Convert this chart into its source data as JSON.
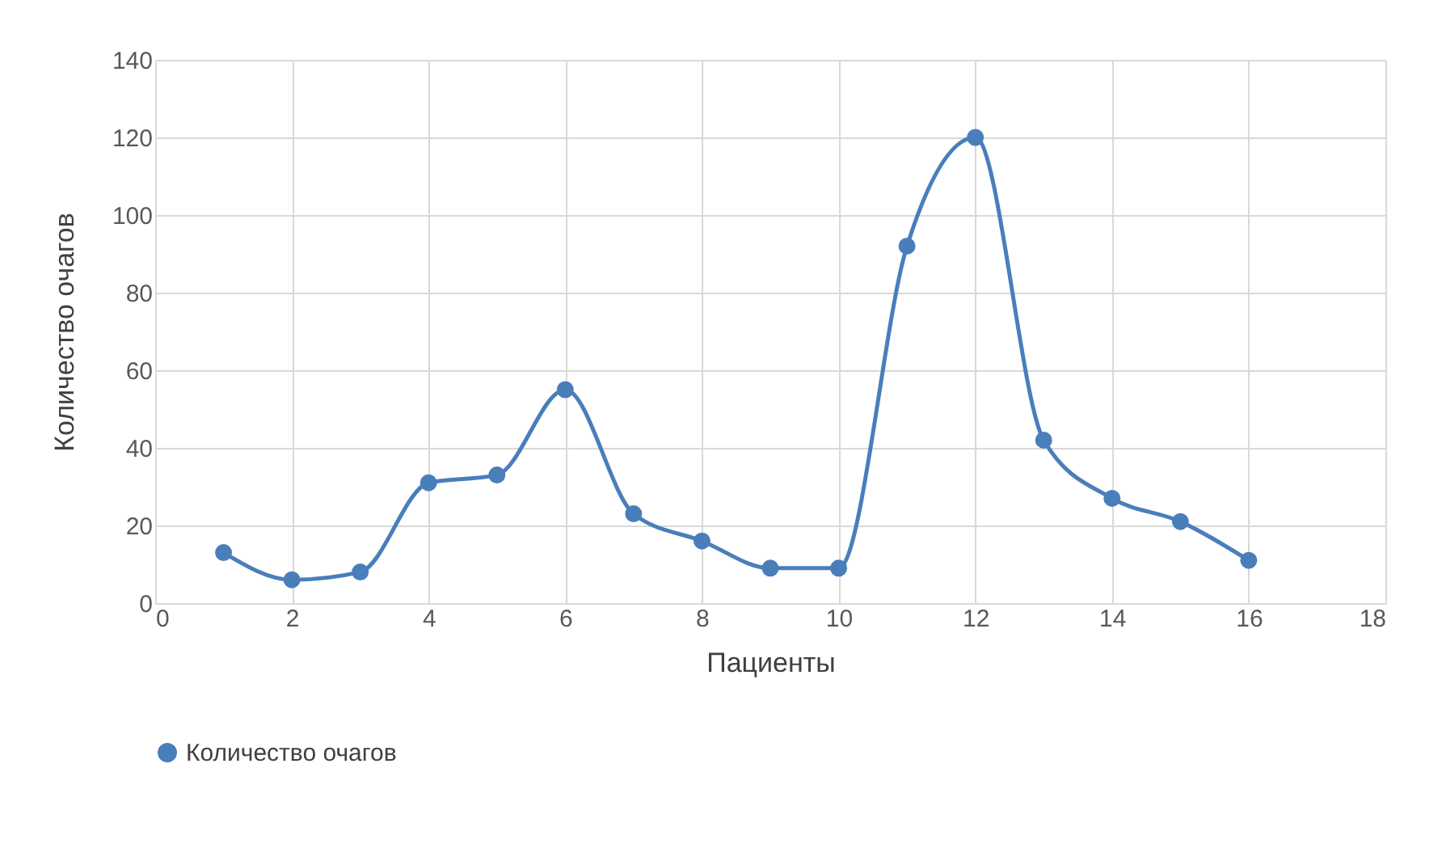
{
  "chart_data": {
    "type": "line",
    "xlabel": "Пациенты",
    "ylabel": "Количество очагов",
    "x": [
      1,
      2,
      3,
      4,
      5,
      6,
      7,
      8,
      9,
      10,
      11,
      12,
      13,
      14,
      15,
      16
    ],
    "series": [
      {
        "name": "Количество очагов",
        "color": "#4a7ebb",
        "values": [
          13,
          6,
          8,
          31,
          33,
          55,
          23,
          16,
          9,
          9,
          92,
          120,
          42,
          27,
          21,
          11
        ]
      }
    ],
    "xlim": [
      0,
      18
    ],
    "xticks": [
      0,
      2,
      4,
      6,
      8,
      10,
      12,
      14,
      16,
      18
    ],
    "ylim": [
      0,
      140
    ],
    "yticks": [
      0,
      20,
      40,
      60,
      80,
      100,
      120,
      140
    ],
    "grid": true,
    "legend": "bottom",
    "marker": "circle",
    "line_style": "solid"
  }
}
